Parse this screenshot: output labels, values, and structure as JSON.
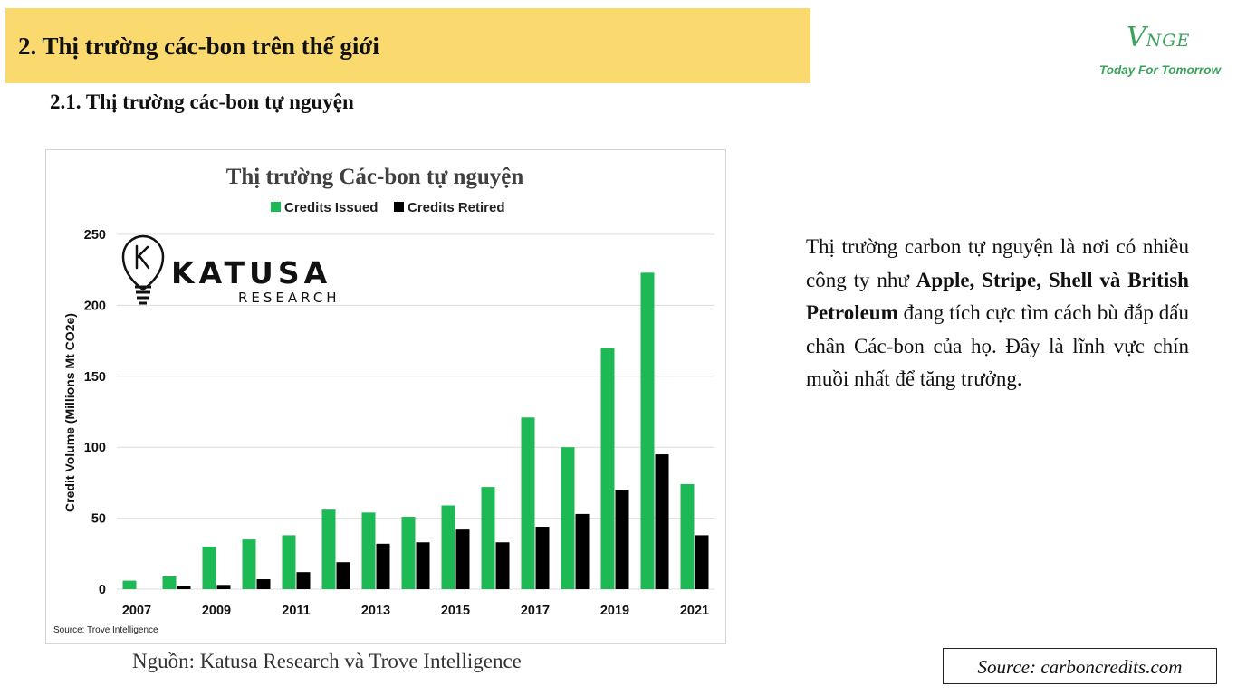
{
  "header": {
    "title": "2. Thị trường các-bon trên thế giới"
  },
  "subheading": "2.1. Thị trường các-bon tự nguyện",
  "logo": {
    "mark_main": "V",
    "mark_rest": "NGE",
    "tagline": "Today For Tomorrow",
    "color": "#3aa35a"
  },
  "chart_data": {
    "type": "bar",
    "title": "Thị trường Các-bon tự nguyện",
    "ylabel": "Credit Volume (Millions Mt CO2e)",
    "xlabel": "",
    "categories": [
      "2007",
      "2008",
      "2009",
      "2010",
      "2011",
      "2012",
      "2013",
      "2014",
      "2015",
      "2016",
      "2017",
      "2018",
      "2019",
      "2020",
      "2021"
    ],
    "x_tick_labels": [
      "2007",
      "",
      "2009",
      "",
      "2011",
      "",
      "2013",
      "",
      "2015",
      "",
      "2017",
      "",
      "2019",
      "",
      "2021"
    ],
    "y_ticks": [
      "0",
      "50",
      "100",
      "150",
      "200",
      "250"
    ],
    "ylim": [
      0,
      250
    ],
    "grid": true,
    "legend_position": "top",
    "series": [
      {
        "name": "Credits Issued",
        "color": "#1db954",
        "values": [
          6,
          9,
          30,
          35,
          38,
          56,
          54,
          51,
          59,
          72,
          121,
          100,
          170,
          223,
          74
        ]
      },
      {
        "name": "Credits Retired",
        "color": "#000000",
        "values": [
          0,
          2,
          3,
          7,
          12,
          19,
          32,
          33,
          42,
          33,
          44,
          53,
          70,
          95,
          38
        ]
      }
    ],
    "source_note": "Source: Trove Intelligence",
    "brand": {
      "name": "KATUSA",
      "sub": "RESEARCH"
    }
  },
  "caption": "Nguồn: Katusa Research và Trove Intelligence",
  "description": {
    "part1": "Thị trường carbon tự nguyện là nơi có nhiều công ty như ",
    "bold": "Apple, Stripe, Shell và British Petroleum",
    "part2": " đang tích cực tìm cách bù đắp dấu chân Các-bon của họ. Đây là lĩnh vực chín muồi nhất để tăng trưởng."
  },
  "source_box": "Source: carboncredits.com"
}
